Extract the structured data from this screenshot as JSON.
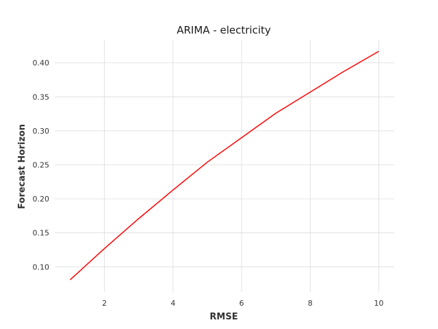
{
  "chart_data": {
    "type": "line",
    "title": "ARIMA - electricity",
    "xlabel": "RMSE",
    "ylabel": "Forecast Horizon",
    "xlim": [
      0.55,
      10.45
    ],
    "ylim": [
      0.063,
      0.434
    ],
    "xticks": [
      2,
      4,
      6,
      8,
      10
    ],
    "yticks": [
      0.1,
      0.15,
      0.2,
      0.25,
      0.3,
      0.35,
      0.4
    ],
    "xtick_labels": [
      "2",
      "4",
      "6",
      "8",
      "10"
    ],
    "ytick_labels": [
      "0.10",
      "0.15",
      "0.20",
      "0.25",
      "0.30",
      "0.35",
      "0.40"
    ],
    "grid": true,
    "legend": "none",
    "series": [
      {
        "color": "#ff0000",
        "x": [
          1,
          2,
          3,
          4,
          5,
          6,
          7,
          8,
          9,
          10
        ],
        "y": [
          0.081,
          0.127,
          0.171,
          0.213,
          0.254,
          0.29,
          0.326,
          0.357,
          0.388,
          0.417
        ]
      }
    ]
  }
}
